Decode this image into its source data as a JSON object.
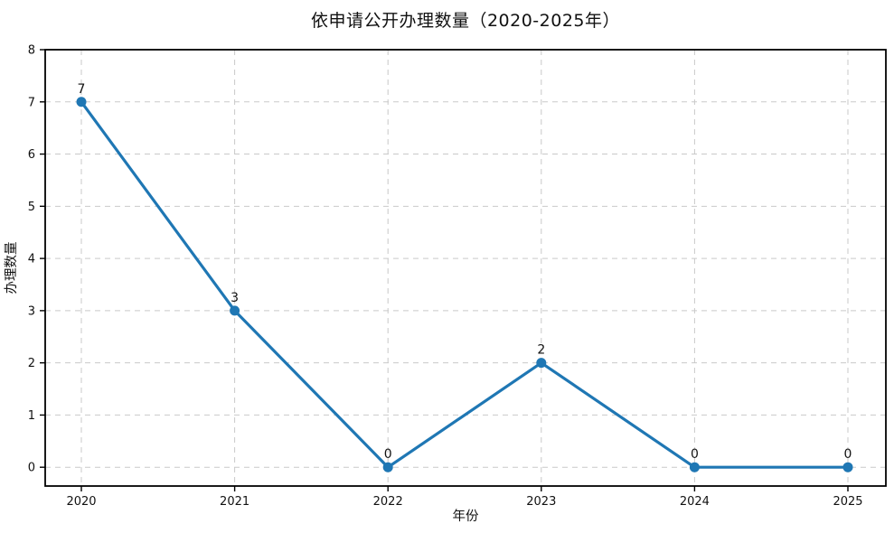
{
  "chart_data": {
    "type": "line",
    "title": "依申请公开办理数量（2020-2025年）",
    "xlabel": "年份",
    "ylabel": "办理数量",
    "categories": [
      "2020",
      "2021",
      "2022",
      "2023",
      "2024",
      "2025"
    ],
    "series": [
      {
        "name": "依申请公开办理数量",
        "values": [
          7,
          3,
          0,
          2,
          0,
          0
        ]
      }
    ],
    "yticks": [
      0,
      1,
      2,
      3,
      4,
      5,
      6,
      7,
      8
    ],
    "ylim": [
      -0.36,
      8
    ],
    "grid": true,
    "grid_style": "dashed",
    "legend_position": "none",
    "data_labels": [
      "7",
      "3",
      "0",
      "2",
      "0",
      "0"
    ],
    "colors": {
      "line": "#1f77b4",
      "marker": "#1f77b4",
      "grid": "#c9c9c9",
      "spine": "#000000",
      "text": "#111111"
    }
  }
}
